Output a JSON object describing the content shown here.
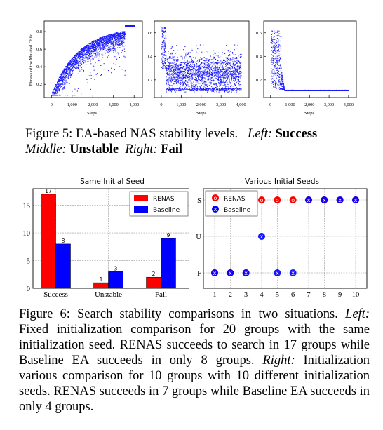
{
  "figure5": {
    "ylabel": "Fitness of the Mutated Child",
    "xlabel": "Steps",
    "xticks": [
      "0",
      "1,000",
      "2,000",
      "3,000",
      "4,000"
    ],
    "panels": [
      {
        "name": "Success",
        "yticks": [
          "0.2",
          "0.4",
          "0.6",
          "0.8"
        ],
        "ylim": [
          0.05,
          0.92
        ]
      },
      {
        "name": "Unstable",
        "yticks": [
          "0.2",
          "0.4",
          "0.6"
        ],
        "ylim": [
          0.05,
          0.7
        ]
      },
      {
        "name": "Fail",
        "yticks": [
          "0.2",
          "0.4",
          "0.6"
        ],
        "ylim": [
          0.05,
          0.7
        ]
      }
    ],
    "point_color": "#1a1aff",
    "caption": {
      "lead": "Figure 5: EA-based NAS stability levels.",
      "left_label": "Left:",
      "left_value": "Success",
      "middle_label": "Middle:",
      "middle_value": "Unstable",
      "right_label": "Right:",
      "right_value": "Fail"
    }
  },
  "chart_data": [
    {
      "type": "bar",
      "title": "Same Initial Seed",
      "categories": [
        "Success",
        "Unstable",
        "Fail"
      ],
      "series": [
        {
          "name": "RENAS",
          "color": "#ff0000",
          "values": [
            17,
            1,
            2
          ]
        },
        {
          "name": "Baseline",
          "color": "#0000ff",
          "values": [
            8,
            3,
            9
          ]
        }
      ],
      "yticks": [
        "0",
        "5",
        "10",
        "15"
      ],
      "ylim": [
        0,
        18
      ],
      "grid": true,
      "legend": "top-right"
    },
    {
      "type": "scatter",
      "title": "Various Initial Seeds",
      "x": [
        1,
        2,
        3,
        4,
        5,
        6,
        7,
        8,
        9,
        10
      ],
      "xticks": [
        "1",
        "2",
        "3",
        "4",
        "5",
        "6",
        "7",
        "8",
        "9",
        "10"
      ],
      "ytick_labels": [
        "F",
        "U",
        "S"
      ],
      "series": [
        {
          "name": "RENAS",
          "color": "#ff0000",
          "values": [
            "F",
            "F",
            "F",
            "S",
            "S",
            "S",
            "S",
            "S",
            "S",
            "S"
          ]
        },
        {
          "name": "Baseline",
          "color": "#0000ff",
          "values": [
            "F",
            "F",
            "F",
            "U",
            "F",
            "F",
            "S",
            "S",
            "S",
            "S"
          ]
        }
      ],
      "grid": true,
      "legend": "top-left"
    }
  ],
  "fig6_caption": {
    "lead": "Figure 6: Search stability comparisons in two situations.",
    "left_label": "Left:",
    "left_text": "Fixed initialization comparison for 20 groups with the same initialization seed. RENAS succeeds to search in 17 groups while Baseline EA succeeds in only 8 groups.",
    "right_label": "Right:",
    "right_text": "Initialization various comparison for 10 groups with 10 different initialization seeds. RENAS succeeds in 7 groups while Baseline EA succeeds in only 4 groups."
  }
}
